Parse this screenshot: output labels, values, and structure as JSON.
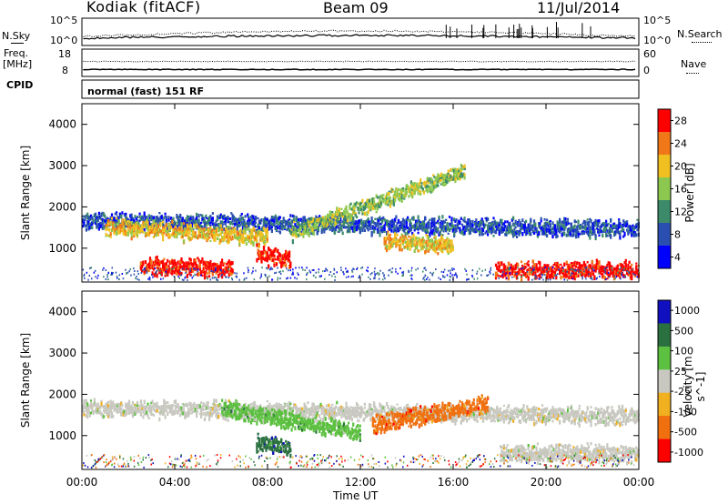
{
  "header": {
    "station": "Kodiak (fitACF)",
    "beam": "Beam 09",
    "date": "11/Jul/2014"
  },
  "panel_labels": {
    "nsky": "N.Sky",
    "nsearch": "N.Search",
    "freq_line1": "Freq.",
    "freq_line2": "[MHz]",
    "nave": "Nave",
    "cpid": "CPID",
    "cpid_value": "normal (fast) 151 RF",
    "nsky_ticks": [
      "10^5",
      "10^0"
    ],
    "freq_ticks": [
      "18",
      "8"
    ],
    "nave_ticks": [
      "60",
      "0"
    ]
  },
  "colors": {
    "power_scale": [
      "#0000ff",
      "#2a4fb0",
      "#3c8a6a",
      "#8cc850",
      "#f0c020",
      "#f07818",
      "#ff0000"
    ],
    "velocity_scale": [
      "#1010c0",
      "#2a7040",
      "#5cc040",
      "#c8c8c0",
      "#f0b020",
      "#f07010",
      "#ff0000"
    ]
  },
  "chart_data": [
    {
      "type": "heatmap",
      "name": "Power",
      "ylabel": "Slant Range [km]",
      "y_ticks": [
        "1000",
        "2000",
        "3000",
        "4000"
      ],
      "ylim": [
        180,
        4500
      ],
      "x_ticks": [
        "00:00",
        "04:00",
        "08:00",
        "12:00",
        "16:00",
        "20:00",
        "00:00"
      ],
      "xlim_hours": [
        0,
        24
      ],
      "colorbar": {
        "label": "Power [dB]",
        "ticks": [
          "4",
          "8",
          "12",
          "16",
          "20",
          "24",
          "28"
        ]
      },
      "bands": [
        {
          "start_h": 0.0,
          "end_h": 24.0,
          "range_start_km": 1700,
          "range_end_km": 1500,
          "power_db": 8
        },
        {
          "start_h": 1.0,
          "end_h": 8.0,
          "range_start_km": 1550,
          "range_end_km": 1300,
          "power_db": 18
        },
        {
          "start_h": 2.5,
          "end_h": 6.5,
          "range_start_km": 600,
          "range_end_km": 550,
          "power_db": 26
        },
        {
          "start_h": 7.5,
          "end_h": 9.0,
          "range_start_km": 900,
          "range_end_km": 750,
          "power_db": 28
        },
        {
          "start_h": 9.0,
          "end_h": 16.5,
          "range_start_km": 1400,
          "range_end_km": 2900,
          "power_db": 14
        },
        {
          "start_h": 13.0,
          "end_h": 16.0,
          "range_start_km": 1200,
          "range_end_km": 1100,
          "power_db": 20
        },
        {
          "start_h": 17.8,
          "end_h": 24.0,
          "range_start_km": 500,
          "range_end_km": 500,
          "power_db": 28
        }
      ]
    },
    {
      "type": "heatmap",
      "name": "Velocity",
      "ylabel": "Slant Range [km]",
      "y_ticks": [
        "1000",
        "2000",
        "3000",
        "4000"
      ],
      "ylim": [
        180,
        4500
      ],
      "x_ticks": [
        "00:00",
        "04:00",
        "08:00",
        "12:00",
        "16:00",
        "20:00",
        "00:00"
      ],
      "xlabel": "Time UT",
      "xlim_hours": [
        0,
        24
      ],
      "colorbar": {
        "label": "Velocity [m s^-1]",
        "ticks": [
          "1000",
          "500",
          "100",
          "25",
          "-25",
          "-100",
          "-500",
          "-1000"
        ]
      },
      "bands": [
        {
          "start_h": 0.0,
          "end_h": 24.0,
          "range_start_km": 1700,
          "range_end_km": 1500,
          "velocity_ms": 0
        },
        {
          "start_h": 6.0,
          "end_h": 12.0,
          "range_start_km": 1700,
          "range_end_km": 1100,
          "velocity_ms": 60
        },
        {
          "start_h": 7.5,
          "end_h": 9.0,
          "range_start_km": 850,
          "range_end_km": 750,
          "velocity_ms": 200
        },
        {
          "start_h": 12.5,
          "end_h": 17.5,
          "range_start_km": 1300,
          "range_end_km": 1800,
          "velocity_ms": -300
        },
        {
          "start_h": 18.0,
          "end_h": 24.0,
          "range_start_km": 600,
          "range_end_km": 600,
          "velocity_ms": 0
        }
      ]
    }
  ]
}
